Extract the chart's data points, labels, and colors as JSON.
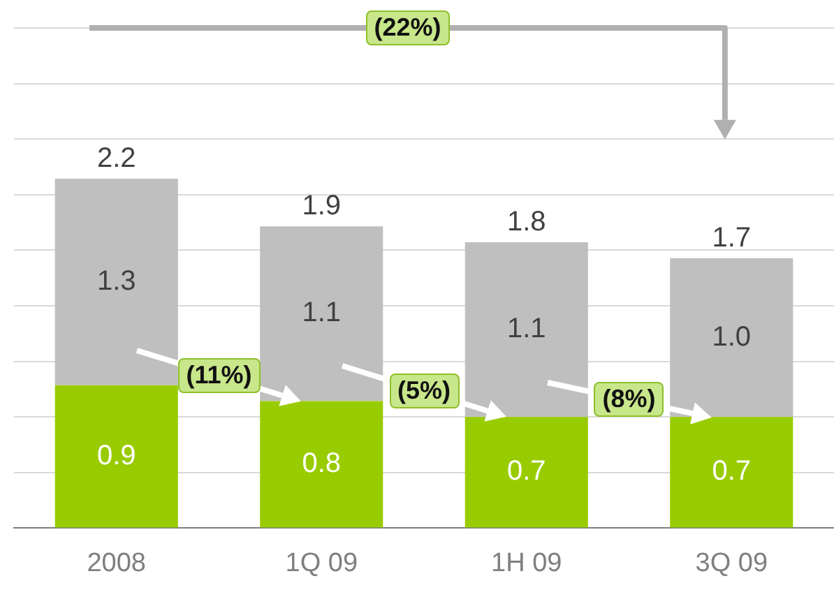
{
  "chart_data": {
    "type": "bar",
    "stacked": true,
    "categories": [
      "2008",
      "1Q 09",
      "1H 09",
      "3Q 09"
    ],
    "series": [
      {
        "color": "#99cc00",
        "values": [
          0.9,
          0.8,
          0.7,
          0.7
        ],
        "value_labels": [
          "0.9",
          "0.8",
          "0.7",
          "0.7"
        ]
      },
      {
        "color": "#bfbfbf",
        "values": [
          1.3,
          1.1,
          1.1,
          1.0
        ],
        "value_labels": [
          "1.3",
          "1.1",
          "1.1",
          "1.0"
        ]
      }
    ],
    "totals": [
      "2.2",
      "1.9",
      "1.8",
      "1.7"
    ],
    "ylim": [
      0,
      3.15
    ],
    "yticks": [
      {
        "value": 0,
        "label": null
      },
      {
        "value": 0.35,
        "label": null
      },
      {
        "value": 0.7,
        "label": null
      },
      {
        "value": 1.05,
        "label": null
      },
      {
        "value": 1.4,
        "label": null
      },
      {
        "value": 1.75,
        "label": null
      },
      {
        "value": 2.1,
        "label": null
      },
      {
        "value": 2.45,
        "label": null
      },
      {
        "value": 2.8,
        "label": null
      },
      {
        "value": 3.15,
        "label": null
      }
    ],
    "tick_labels": "x",
    "grid": "y",
    "legend": false,
    "annotations": [
      "(11%)",
      "(5%)",
      "(8%)",
      "(22%)"
    ]
  }
}
